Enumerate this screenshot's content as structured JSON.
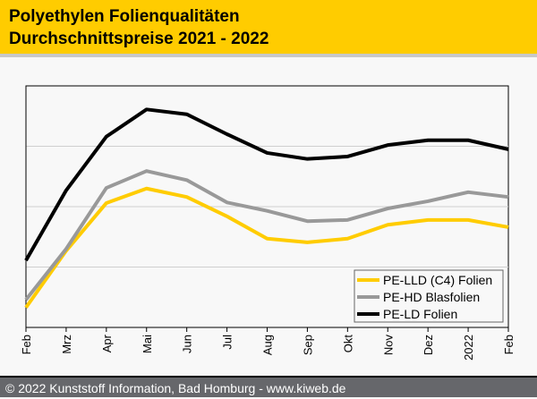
{
  "title": {
    "line1": "Polyethylen Folienqualitäten",
    "line2": "Durchschnittspreise 2021 - 2022"
  },
  "footer": "© 2022 Kunststoff Information, Bad Homburg - www.kiweb.de",
  "chart_data": {
    "type": "line",
    "title": "Polyethylen Folienqualitäten Durchschnittspreise 2021 - 2022",
    "xlabel": "",
    "ylabel": "",
    "categories": [
      "Feb",
      "Mrz",
      "Apr",
      "Mai",
      "Jun",
      "Jul",
      "Aug",
      "Sep",
      "Okt",
      "Nov",
      "Dez",
      "2022",
      "Feb"
    ],
    "ylim": [
      0,
      4
    ],
    "y_ticks_labeled": false,
    "grid": "horizontal",
    "legend_position": "bottom-right",
    "series": [
      {
        "name": "PE-LLD (C4) Folien",
        "color": "#ffcc00",
        "values": [
          0.33,
          1.27,
          2.06,
          2.3,
          2.16,
          1.84,
          1.47,
          1.41,
          1.47,
          1.7,
          1.78,
          1.78,
          1.66
        ]
      },
      {
        "name": "PE-HD Blasfolien",
        "color": "#999999",
        "values": [
          0.46,
          1.3,
          2.31,
          2.59,
          2.44,
          2.07,
          1.93,
          1.76,
          1.78,
          1.97,
          2.09,
          2.24,
          2.16
        ]
      },
      {
        "name": "PE-LD Folien",
        "color": "#000000",
        "values": [
          1.11,
          2.27,
          3.16,
          3.61,
          3.53,
          3.2,
          2.89,
          2.79,
          2.83,
          3.02,
          3.1,
          3.1,
          2.95
        ]
      }
    ]
  }
}
